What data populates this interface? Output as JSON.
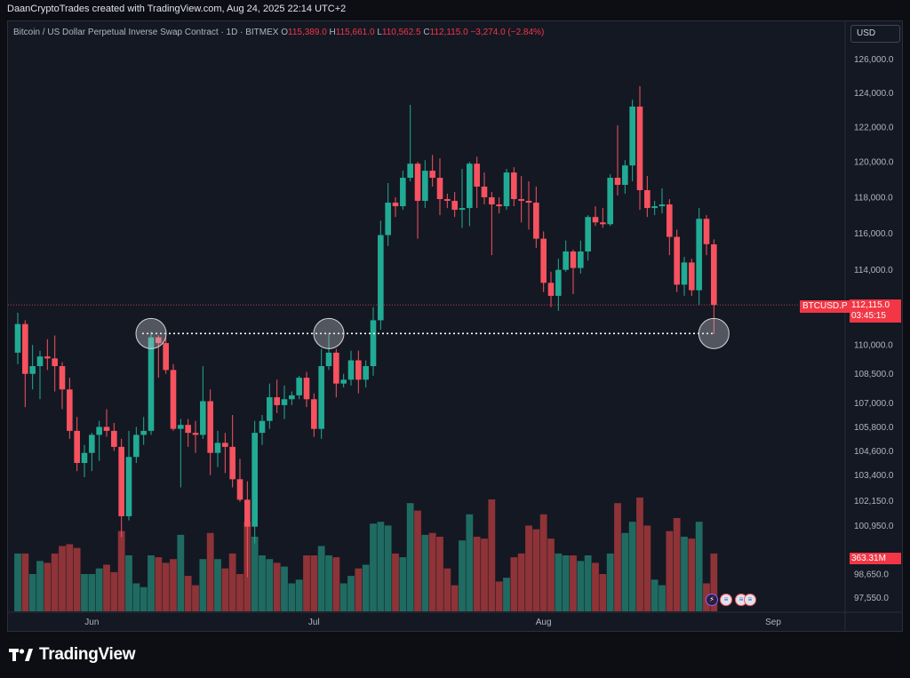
{
  "header": {
    "attribution": "DaanCryptoTrades created with TradingView.com, Aug 24, 2025 22:14 UTC+2"
  },
  "legend": {
    "title": "Bitcoin / US Dollar Perpetual Inverse Swap Contract · 1D · BITMEX",
    "o_label": "O",
    "o_value": "115,389.0",
    "h_label": "H",
    "h_value": "115,661.0",
    "l_label": "L",
    "l_value": "110,562.5",
    "c_label": "C",
    "c_value": "112,115.0",
    "change": "−3,274.0 (−2.84%)"
  },
  "currency": "USD",
  "symbol_tag": "BTCUSD.P",
  "price_tag": {
    "price": "112,115.0",
    "countdown": "03:45:15"
  },
  "volume_tag": "363.31M",
  "footer": {
    "brand": "TradingView"
  },
  "colors": {
    "up": "#22ab94",
    "down": "#f7525f",
    "vol_up": "#1f6b62",
    "vol_down": "#8e3337",
    "background": "#141823"
  },
  "chart_data": {
    "type": "candlestick",
    "y_scale": "log",
    "ylim": [
      97000,
      127000
    ],
    "y_ticks": [
      {
        "value": 126000,
        "label": "126,000.0"
      },
      {
        "value": 124000,
        "label": "124,000.0"
      },
      {
        "value": 122000,
        "label": "122,000.0"
      },
      {
        "value": 120000,
        "label": "120,000.0"
      },
      {
        "value": 118000,
        "label": "118,000.0"
      },
      {
        "value": 116000,
        "label": "116,000.0"
      },
      {
        "value": 114000,
        "label": "114,000.0"
      },
      {
        "value": 110000,
        "label": "110,000.0"
      },
      {
        "value": 108500,
        "label": "108,500.0"
      },
      {
        "value": 107000,
        "label": "107,000.0"
      },
      {
        "value": 105800,
        "label": "105,800.0"
      },
      {
        "value": 104600,
        "label": "104,600.0"
      },
      {
        "value": 103400,
        "label": "103,400.0"
      },
      {
        "value": 102150,
        "label": "102,150.0"
      },
      {
        "value": 100950,
        "label": "100,950.0"
      },
      {
        "value": 98650,
        "label": "98,650.0"
      },
      {
        "value": 97550,
        "label": "97,550.0"
      }
    ],
    "x_ticks": [
      {
        "date": "2025-06-01",
        "label": "Jun"
      },
      {
        "date": "2025-07-01",
        "label": "Jul"
      },
      {
        "date": "2025-08-01",
        "label": "Aug"
      },
      {
        "date": "2025-09-01",
        "label": "Sep"
      }
    ],
    "date_range": [
      "2025-05-22",
      "2025-09-01"
    ],
    "last_price": 112115,
    "horizontal_level": 110600,
    "highlight_dates": [
      "2025-06-09",
      "2025-07-03",
      "2025-08-24"
    ],
    "candles": [
      {
        "date": "2025-05-22",
        "o": 109600,
        "h": 111700,
        "l": 109000,
        "c": 111100,
        "v": 62
      },
      {
        "date": "2025-05-23",
        "o": 111100,
        "h": 111300,
        "l": 106800,
        "c": 108500,
        "v": 62
      },
      {
        "date": "2025-05-24",
        "o": 108500,
        "h": 110000,
        "l": 107700,
        "c": 108900,
        "v": 40
      },
      {
        "date": "2025-05-25",
        "o": 108900,
        "h": 109700,
        "l": 107200,
        "c": 109400,
        "v": 54
      },
      {
        "date": "2025-05-26",
        "o": 109400,
        "h": 110300,
        "l": 108700,
        "c": 109300,
        "v": 52
      },
      {
        "date": "2025-05-27",
        "o": 109300,
        "h": 110500,
        "l": 107600,
        "c": 108900,
        "v": 62
      },
      {
        "date": "2025-05-28",
        "o": 108900,
        "h": 109100,
        "l": 106700,
        "c": 107700,
        "v": 70
      },
      {
        "date": "2025-05-29",
        "o": 107700,
        "h": 108300,
        "l": 105200,
        "c": 105600,
        "v": 72
      },
      {
        "date": "2025-05-30",
        "o": 105600,
        "h": 106300,
        "l": 103600,
        "c": 104000,
        "v": 68
      },
      {
        "date": "2025-05-31",
        "o": 104000,
        "h": 104900,
        "l": 103300,
        "c": 104500,
        "v": 40
      },
      {
        "date": "2025-06-01",
        "o": 104500,
        "h": 105500,
        "l": 103600,
        "c": 105400,
        "v": 40
      },
      {
        "date": "2025-06-02",
        "o": 105400,
        "h": 106100,
        "l": 104100,
        "c": 105800,
        "v": 46
      },
      {
        "date": "2025-06-03",
        "o": 105800,
        "h": 106700,
        "l": 105300,
        "c": 105600,
        "v": 50
      },
      {
        "date": "2025-06-04",
        "o": 105600,
        "h": 106000,
        "l": 104600,
        "c": 104800,
        "v": 42
      },
      {
        "date": "2025-06-05",
        "o": 104800,
        "h": 105200,
        "l": 100400,
        "c": 101400,
        "v": 86
      },
      {
        "date": "2025-06-06",
        "o": 101400,
        "h": 105600,
        "l": 101200,
        "c": 104300,
        "v": 60
      },
      {
        "date": "2025-06-07",
        "o": 104300,
        "h": 105800,
        "l": 104000,
        "c": 105400,
        "v": 30
      },
      {
        "date": "2025-06-08",
        "o": 105400,
        "h": 106300,
        "l": 104900,
        "c": 105600,
        "v": 26
      },
      {
        "date": "2025-06-09",
        "o": 105600,
        "h": 110700,
        "l": 105400,
        "c": 110400,
        "v": 60
      },
      {
        "date": "2025-06-10",
        "o": 110400,
        "h": 110500,
        "l": 108300,
        "c": 110100,
        "v": 58
      },
      {
        "date": "2025-06-11",
        "o": 110100,
        "h": 110400,
        "l": 108500,
        "c": 108700,
        "v": 52
      },
      {
        "date": "2025-06-12",
        "o": 108700,
        "h": 109000,
        "l": 105600,
        "c": 105700,
        "v": 56
      },
      {
        "date": "2025-06-13",
        "o": 105700,
        "h": 106200,
        "l": 102800,
        "c": 105900,
        "v": 82
      },
      {
        "date": "2025-06-14",
        "o": 105900,
        "h": 106200,
        "l": 104800,
        "c": 105500,
        "v": 38
      },
      {
        "date": "2025-06-15",
        "o": 105500,
        "h": 106100,
        "l": 104500,
        "c": 105400,
        "v": 28
      },
      {
        "date": "2025-06-16",
        "o": 105400,
        "h": 108900,
        "l": 105200,
        "c": 107100,
        "v": 56
      },
      {
        "date": "2025-06-17",
        "o": 107100,
        "h": 107700,
        "l": 103400,
        "c": 104500,
        "v": 84
      },
      {
        "date": "2025-06-18",
        "o": 104500,
        "h": 105600,
        "l": 103800,
        "c": 105000,
        "v": 56
      },
      {
        "date": "2025-06-19",
        "o": 105000,
        "h": 105500,
        "l": 103500,
        "c": 104800,
        "v": 46
      },
      {
        "date": "2025-06-20",
        "o": 104800,
        "h": 106400,
        "l": 102800,
        "c": 103200,
        "v": 62
      },
      {
        "date": "2025-06-21",
        "o": 103200,
        "h": 104200,
        "l": 102100,
        "c": 102200,
        "v": 40
      },
      {
        "date": "2025-06-22",
        "o": 102200,
        "h": 103100,
        "l": 98500,
        "c": 100900,
        "v": 96
      },
      {
        "date": "2025-06-23",
        "o": 100900,
        "h": 106100,
        "l": 100100,
        "c": 105500,
        "v": 80
      },
      {
        "date": "2025-06-24",
        "o": 105500,
        "h": 106400,
        "l": 104900,
        "c": 106100,
        "v": 60
      },
      {
        "date": "2025-06-25",
        "o": 106100,
        "h": 108000,
        "l": 105700,
        "c": 107300,
        "v": 56
      },
      {
        "date": "2025-06-26",
        "o": 107300,
        "h": 108200,
        "l": 106500,
        "c": 106900,
        "v": 52
      },
      {
        "date": "2025-06-27",
        "o": 106900,
        "h": 107900,
        "l": 106200,
        "c": 107200,
        "v": 48
      },
      {
        "date": "2025-06-28",
        "o": 107200,
        "h": 107600,
        "l": 106900,
        "c": 107400,
        "v": 30
      },
      {
        "date": "2025-06-29",
        "o": 107400,
        "h": 108400,
        "l": 107200,
        "c": 108300,
        "v": 34
      },
      {
        "date": "2025-06-30",
        "o": 108300,
        "h": 108600,
        "l": 106800,
        "c": 107200,
        "v": 60
      },
      {
        "date": "2025-07-01",
        "o": 107200,
        "h": 107500,
        "l": 105300,
        "c": 105700,
        "v": 60
      },
      {
        "date": "2025-07-02",
        "o": 105700,
        "h": 109800,
        "l": 105200,
        "c": 108900,
        "v": 70
      },
      {
        "date": "2025-07-03",
        "o": 108900,
        "h": 110600,
        "l": 108700,
        "c": 109600,
        "v": 60
      },
      {
        "date": "2025-07-04",
        "o": 109600,
        "h": 109800,
        "l": 107300,
        "c": 108000,
        "v": 58
      },
      {
        "date": "2025-07-05",
        "o": 108000,
        "h": 108500,
        "l": 107800,
        "c": 108200,
        "v": 30
      },
      {
        "date": "2025-07-06",
        "o": 108200,
        "h": 109700,
        "l": 107900,
        "c": 109200,
        "v": 38
      },
      {
        "date": "2025-07-07",
        "o": 109200,
        "h": 109700,
        "l": 107500,
        "c": 108200,
        "v": 46
      },
      {
        "date": "2025-07-08",
        "o": 108200,
        "h": 109200,
        "l": 107800,
        "c": 108900,
        "v": 50
      },
      {
        "date": "2025-07-09",
        "o": 108900,
        "h": 112000,
        "l": 108400,
        "c": 111300,
        "v": 94
      },
      {
        "date": "2025-07-10",
        "o": 111300,
        "h": 116700,
        "l": 110800,
        "c": 115900,
        "v": 96
      },
      {
        "date": "2025-07-11",
        "o": 115900,
        "h": 118800,
        "l": 115300,
        "c": 117700,
        "v": 92
      },
      {
        "date": "2025-07-12",
        "o": 117700,
        "h": 118000,
        "l": 116900,
        "c": 117500,
        "v": 62
      },
      {
        "date": "2025-07-13",
        "o": 117500,
        "h": 119500,
        "l": 117300,
        "c": 119100,
        "v": 58
      },
      {
        "date": "2025-07-14",
        "o": 119100,
        "h": 123300,
        "l": 118900,
        "c": 119900,
        "v": 116
      },
      {
        "date": "2025-07-15",
        "o": 119900,
        "h": 120000,
        "l": 115700,
        "c": 117800,
        "v": 108
      },
      {
        "date": "2025-07-16",
        "o": 117800,
        "h": 120100,
        "l": 117400,
        "c": 119500,
        "v": 82
      },
      {
        "date": "2025-07-17",
        "o": 119500,
        "h": 120400,
        "l": 118600,
        "c": 119100,
        "v": 84
      },
      {
        "date": "2025-07-18",
        "o": 119100,
        "h": 120200,
        "l": 117000,
        "c": 117900,
        "v": 80
      },
      {
        "date": "2025-07-19",
        "o": 117900,
        "h": 118200,
        "l": 117400,
        "c": 117800,
        "v": 46
      },
      {
        "date": "2025-07-20",
        "o": 117800,
        "h": 118300,
        "l": 116900,
        "c": 117300,
        "v": 28
      },
      {
        "date": "2025-07-21",
        "o": 117300,
        "h": 119600,
        "l": 116300,
        "c": 117400,
        "v": 76
      },
      {
        "date": "2025-07-22",
        "o": 117400,
        "h": 120000,
        "l": 116400,
        "c": 119900,
        "v": 104
      },
      {
        "date": "2025-07-23",
        "o": 119900,
        "h": 120300,
        "l": 117400,
        "c": 118600,
        "v": 80
      },
      {
        "date": "2025-07-24",
        "o": 118600,
        "h": 119400,
        "l": 117600,
        "c": 118000,
        "v": 78
      },
      {
        "date": "2025-07-25",
        "o": 118000,
        "h": 118300,
        "l": 114800,
        "c": 117600,
        "v": 120
      },
      {
        "date": "2025-07-26",
        "o": 117600,
        "h": 118000,
        "l": 117100,
        "c": 117500,
        "v": 32
      },
      {
        "date": "2025-07-27",
        "o": 117500,
        "h": 119600,
        "l": 117300,
        "c": 119400,
        "v": 36
      },
      {
        "date": "2025-07-28",
        "o": 119400,
        "h": 119700,
        "l": 117500,
        "c": 117900,
        "v": 58
      },
      {
        "date": "2025-07-29",
        "o": 117900,
        "h": 119200,
        "l": 116600,
        "c": 117800,
        "v": 62
      },
      {
        "date": "2025-07-30",
        "o": 117800,
        "h": 118900,
        "l": 116200,
        "c": 117700,
        "v": 92
      },
      {
        "date": "2025-07-31",
        "o": 117700,
        "h": 118600,
        "l": 115200,
        "c": 115700,
        "v": 88
      },
      {
        "date": "2025-08-01",
        "o": 115700,
        "h": 116100,
        "l": 112800,
        "c": 113300,
        "v": 104
      },
      {
        "date": "2025-08-02",
        "o": 113300,
        "h": 113900,
        "l": 112000,
        "c": 112600,
        "v": 78
      },
      {
        "date": "2025-08-03",
        "o": 112600,
        "h": 114600,
        "l": 111800,
        "c": 114000,
        "v": 62
      },
      {
        "date": "2025-08-04",
        "o": 114000,
        "h": 115600,
        "l": 113900,
        "c": 115000,
        "v": 60
      },
      {
        "date": "2025-08-05",
        "o": 115000,
        "h": 115100,
        "l": 112700,
        "c": 114100,
        "v": 60
      },
      {
        "date": "2025-08-06",
        "o": 114100,
        "h": 115600,
        "l": 113800,
        "c": 115000,
        "v": 54
      },
      {
        "date": "2025-08-07",
        "o": 115000,
        "h": 117000,
        "l": 114500,
        "c": 116900,
        "v": 60
      },
      {
        "date": "2025-08-08",
        "o": 116900,
        "h": 117500,
        "l": 116400,
        "c": 116600,
        "v": 52
      },
      {
        "date": "2025-08-09",
        "o": 116600,
        "h": 117400,
        "l": 116300,
        "c": 116500,
        "v": 40
      },
      {
        "date": "2025-08-10",
        "o": 116500,
        "h": 119300,
        "l": 116400,
        "c": 119100,
        "v": 62
      },
      {
        "date": "2025-08-11",
        "o": 119100,
        "h": 122100,
        "l": 118100,
        "c": 118700,
        "v": 116
      },
      {
        "date": "2025-08-12",
        "o": 118700,
        "h": 120100,
        "l": 118200,
        "c": 119800,
        "v": 84
      },
      {
        "date": "2025-08-13",
        "o": 119800,
        "h": 123600,
        "l": 118900,
        "c": 123200,
        "v": 96
      },
      {
        "date": "2025-08-14",
        "o": 123200,
        "h": 124400,
        "l": 117300,
        "c": 118400,
        "v": 122
      },
      {
        "date": "2025-08-15",
        "o": 118400,
        "h": 119200,
        "l": 116900,
        "c": 117400,
        "v": 92
      },
      {
        "date": "2025-08-16",
        "o": 117400,
        "h": 117800,
        "l": 117000,
        "c": 117500,
        "v": 34
      },
      {
        "date": "2025-08-17",
        "o": 117500,
        "h": 118500,
        "l": 117100,
        "c": 117600,
        "v": 28
      },
      {
        "date": "2025-08-18",
        "o": 117600,
        "h": 117900,
        "l": 114800,
        "c": 115800,
        "v": 86
      },
      {
        "date": "2025-08-19",
        "o": 115800,
        "h": 116200,
        "l": 112800,
        "c": 113200,
        "v": 100
      },
      {
        "date": "2025-08-20",
        "o": 113200,
        "h": 114700,
        "l": 112600,
        "c": 114400,
        "v": 80
      },
      {
        "date": "2025-08-21",
        "o": 114400,
        "h": 114600,
        "l": 112600,
        "c": 112900,
        "v": 78
      },
      {
        "date": "2025-08-22",
        "o": 112900,
        "h": 117400,
        "l": 112100,
        "c": 116800,
        "v": 96
      },
      {
        "date": "2025-08-23",
        "o": 116800,
        "h": 117000,
        "l": 114800,
        "c": 115400,
        "v": 30
      },
      {
        "date": "2025-08-24",
        "o": 115389,
        "h": 115661,
        "l": 110562.5,
        "c": 112115,
        "v": 62
      }
    ]
  }
}
